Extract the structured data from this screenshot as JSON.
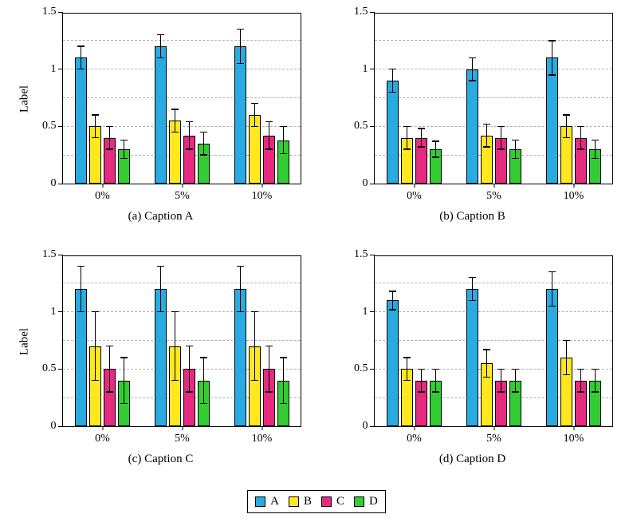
{
  "colors": {
    "A": "#29abe2",
    "B": "#ffe81e",
    "C": "#e62a7f",
    "D": "#33cc33"
  },
  "legend": {
    "items": [
      "A",
      "B",
      "C",
      "D"
    ]
  },
  "chart_data": [
    {
      "id": "a",
      "type": "bar",
      "title": "(a) Caption A",
      "xlabel": "",
      "ylabel": "Label",
      "categories": [
        "0%",
        "5%",
        "10%"
      ],
      "ylim": [
        0,
        1.5
      ],
      "yticks": [
        0,
        0.5,
        1,
        1.5
      ],
      "gridlines": [
        0.25,
        0.5,
        0.75,
        1,
        1.25
      ],
      "grid": "dashed",
      "legend_position": "bottom-outside-shared",
      "series": [
        {
          "name": "A",
          "values": [
            1.1,
            1.2,
            1.2
          ],
          "errors": [
            0.1,
            0.1,
            0.15
          ]
        },
        {
          "name": "B",
          "values": [
            0.5,
            0.55,
            0.6
          ],
          "errors": [
            0.1,
            0.1,
            0.1
          ]
        },
        {
          "name": "C",
          "values": [
            0.4,
            0.42,
            0.42
          ],
          "errors": [
            0.1,
            0.12,
            0.12
          ]
        },
        {
          "name": "D",
          "values": [
            0.3,
            0.35,
            0.38
          ],
          "errors": [
            0.08,
            0.1,
            0.12
          ]
        }
      ]
    },
    {
      "id": "b",
      "type": "bar",
      "title": "(b) Caption B",
      "xlabel": "",
      "ylabel": "",
      "categories": [
        "0%",
        "5%",
        "10%"
      ],
      "ylim": [
        0,
        1.5
      ],
      "yticks": [
        0,
        0.5,
        1,
        1.5
      ],
      "gridlines": [
        0.25,
        0.5,
        0.75,
        1,
        1.25
      ],
      "grid": "dashed",
      "series": [
        {
          "name": "A",
          "values": [
            0.9,
            1.0,
            1.1
          ],
          "errors": [
            0.1,
            0.1,
            0.15
          ]
        },
        {
          "name": "B",
          "values": [
            0.4,
            0.42,
            0.5
          ],
          "errors": [
            0.1,
            0.1,
            0.1
          ]
        },
        {
          "name": "C",
          "values": [
            0.4,
            0.4,
            0.4
          ],
          "errors": [
            0.08,
            0.1,
            0.1
          ]
        },
        {
          "name": "D",
          "values": [
            0.3,
            0.3,
            0.3
          ],
          "errors": [
            0.07,
            0.08,
            0.08
          ]
        }
      ]
    },
    {
      "id": "c",
      "type": "bar",
      "title": "(c) Caption C",
      "xlabel": "",
      "ylabel": "Label",
      "categories": [
        "0%",
        "5%",
        "10%"
      ],
      "ylim": [
        0,
        1.5
      ],
      "yticks": [
        0,
        0.5,
        1,
        1.5
      ],
      "gridlines": [
        0.25,
        0.5,
        0.75,
        1,
        1.25
      ],
      "grid": "dashed",
      "series": [
        {
          "name": "A",
          "values": [
            1.2,
            1.2,
            1.2
          ],
          "errors": [
            0.2,
            0.2,
            0.2
          ]
        },
        {
          "name": "B",
          "values": [
            0.7,
            0.7,
            0.7
          ],
          "errors": [
            0.3,
            0.3,
            0.3
          ]
        },
        {
          "name": "C",
          "values": [
            0.5,
            0.5,
            0.5
          ],
          "errors": [
            0.2,
            0.2,
            0.2
          ]
        },
        {
          "name": "D",
          "values": [
            0.4,
            0.4,
            0.4
          ],
          "errors": [
            0.2,
            0.2,
            0.2
          ]
        }
      ]
    },
    {
      "id": "d",
      "type": "bar",
      "title": "(d) Caption D",
      "xlabel": "",
      "ylabel": "",
      "categories": [
        "0%",
        "5%",
        "10%"
      ],
      "ylim": [
        0,
        1.5
      ],
      "yticks": [
        0,
        0.5,
        1,
        1.5
      ],
      "gridlines": [
        0.25,
        0.5,
        0.75,
        1,
        1.25
      ],
      "grid": "dashed",
      "series": [
        {
          "name": "A",
          "values": [
            1.1,
            1.2,
            1.2
          ],
          "errors": [
            0.08,
            0.1,
            0.15
          ]
        },
        {
          "name": "B",
          "values": [
            0.5,
            0.55,
            0.6
          ],
          "errors": [
            0.1,
            0.12,
            0.15
          ]
        },
        {
          "name": "C",
          "values": [
            0.4,
            0.4,
            0.4
          ],
          "errors": [
            0.1,
            0.1,
            0.1
          ]
        },
        {
          "name": "D",
          "values": [
            0.4,
            0.4,
            0.4
          ],
          "errors": [
            0.1,
            0.1,
            0.1
          ]
        }
      ]
    }
  ]
}
